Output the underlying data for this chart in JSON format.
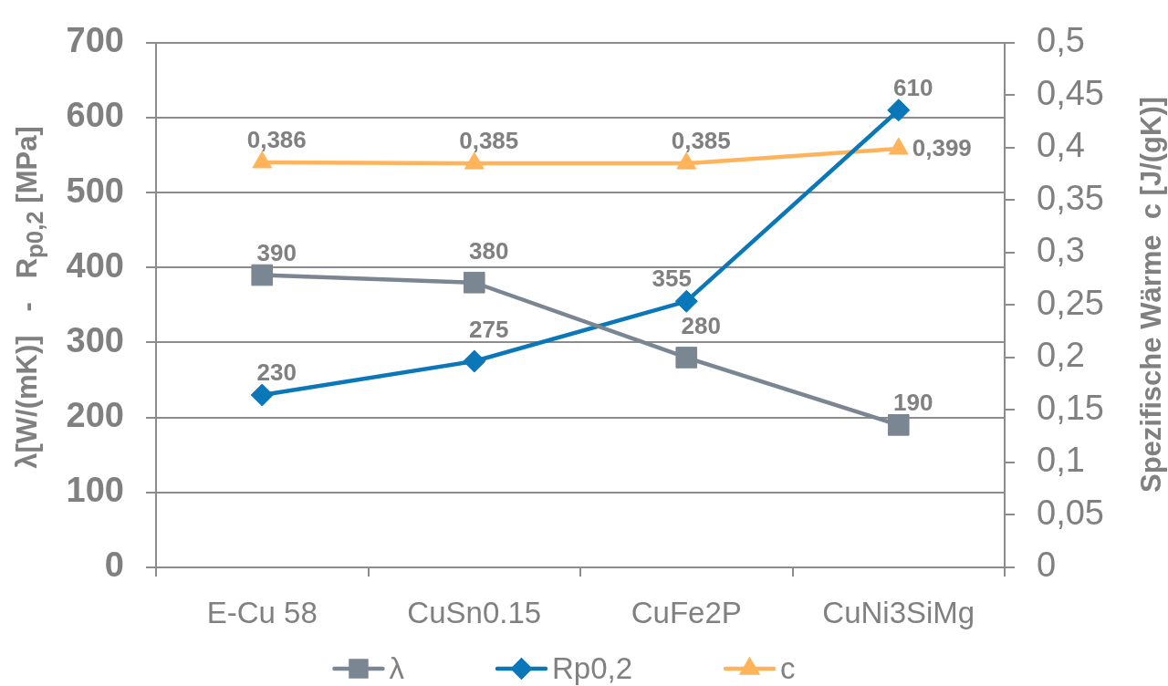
{
  "chart_data": {
    "type": "line",
    "categories": [
      "E-Cu 58",
      "CuSn0.15",
      "CuFe2P",
      "CuNi3SiMg"
    ],
    "ylabel": "λ[W/(mK)]   -   R$_{p0,2}$ [MPa]",
    "y2label": "Spezifische Wärme  c [J/(gK)]",
    "ylim": [
      0,
      700
    ],
    "yticks": [
      0,
      100,
      200,
      300,
      400,
      500,
      600,
      700
    ],
    "y2lim": [
      0,
      0.5
    ],
    "y2ticks": [
      0,
      {
        "value": 0.05,
        "label": "0,05"
      },
      {
        "value": 0.1,
        "label": "0,1"
      },
      {
        "value": 0.15,
        "label": "0,15"
      },
      {
        "value": 0.2,
        "label": "0,2"
      },
      {
        "value": 0.25,
        "label": "0,25"
      },
      {
        "value": 0.3,
        "label": "0,3"
      },
      {
        "value": 0.35,
        "label": "0,35"
      },
      {
        "value": 0.4,
        "label": "0,4"
      },
      {
        "value": 0.45,
        "label": "0,45"
      },
      {
        "value": 0.5,
        "label": "0,5"
      }
    ],
    "grid": "y",
    "legend": "bottom",
    "series": [
      {
        "name": "λ",
        "color": "#7a8691",
        "marker": "square",
        "values": [
          390,
          380,
          280,
          190
        ],
        "value_labels": [
          "390",
          "380",
          "280",
          "190"
        ]
      },
      {
        "name": "Rp0,2",
        "color": "#0a77b8",
        "marker": "diamond",
        "values": [
          230,
          275,
          355,
          610
        ],
        "value_labels": [
          "230",
          "275",
          "355",
          "610"
        ]
      },
      {
        "name": "c",
        "color": "#ffb45c",
        "marker": "triangle",
        "axis": "y2",
        "values": [
          0.386,
          0.385,
          0.385,
          0.399
        ],
        "value_labels": [
          "0,386",
          "0,385",
          "0,385",
          "0,399"
        ]
      }
    ]
  }
}
